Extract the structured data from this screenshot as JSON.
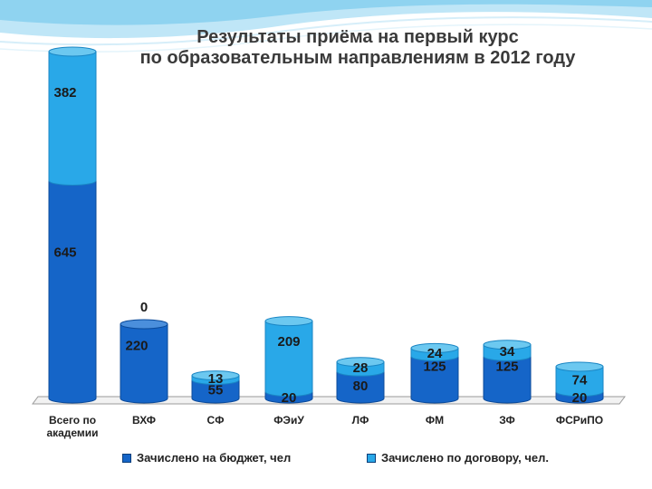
{
  "title_line1": "Результаты приёма на первый курс",
  "title_line2": "по образовательным направлениям в 2012 году",
  "colors": {
    "budget": "#1565c8",
    "budget_dark": "#0b4a9a",
    "contract": "#29a8e8",
    "contract_dark": "#1a86c4",
    "title": "#3a3a3a"
  },
  "chart_data": {
    "type": "bar",
    "stacked": true,
    "style": "3d-cylinder",
    "categories": [
      "Всего по академии",
      "ВХФ",
      "СФ",
      "ФЭиУ",
      "ЛФ",
      "ФМ",
      "ЗФ",
      "ФСРиПО"
    ],
    "category_lines": [
      [
        "Всего по",
        "академии"
      ],
      [
        "ВХФ"
      ],
      [
        "СФ"
      ],
      [
        "ФЭиУ"
      ],
      [
        "ЛФ"
      ],
      [
        "ФМ"
      ],
      [
        "ЗФ"
      ],
      [
        "ФСРиПО"
      ]
    ],
    "series": [
      {
        "name": "Зачислено на бюджет, чел",
        "values": [
          645,
          220,
          55,
          20,
          80,
          125,
          125,
          20
        ]
      },
      {
        "name": "Зачислено по договору, чел.",
        "values": [
          382,
          0,
          13,
          209,
          28,
          24,
          34,
          74
        ]
      }
    ],
    "ylim": [
      0,
      1027
    ],
    "legend_position": "bottom",
    "grid": false
  }
}
